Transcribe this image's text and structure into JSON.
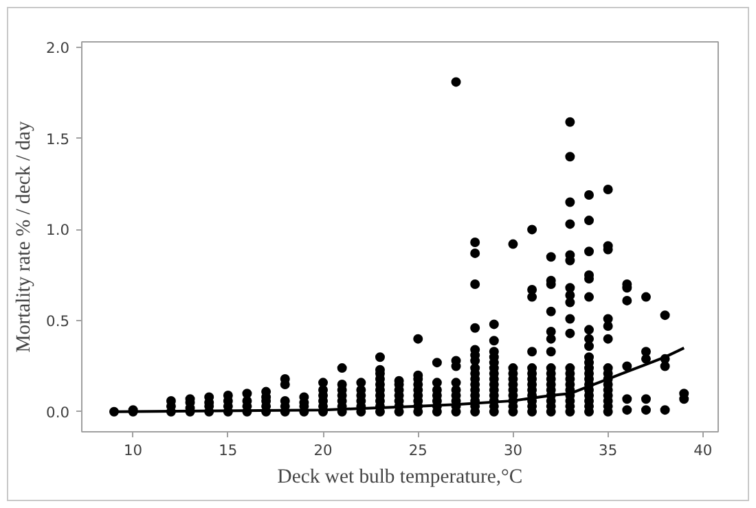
{
  "chart_data": {
    "type": "scatter",
    "xlabel": "Deck wet bulb temperature,°C",
    "ylabel": "Mortality rate % / deck / day",
    "xlim": [
      7.3,
      40.8
    ],
    "ylim": [
      -0.11,
      2.03
    ],
    "xticks": [
      10,
      15,
      20,
      25,
      30,
      35,
      40
    ],
    "yticks": [
      {
        "value": 0,
        "label": "0.0"
      },
      {
        "value": 0.5,
        "label": "0.5"
      },
      {
        "value": 1,
        "label": "1.0"
      },
      {
        "value": 1.5,
        "label": "1.5"
      },
      {
        "value": 2,
        "label": "2.0"
      }
    ],
    "grid": false,
    "marker": "circle",
    "series": [
      {
        "color": "#000000",
        "x": [
          9,
          10,
          10,
          12,
          12,
          12,
          13,
          13,
          13,
          13,
          14,
          14,
          14,
          14,
          15,
          15,
          15,
          15,
          16,
          16,
          16,
          16,
          17,
          17,
          17,
          17,
          17,
          18,
          18,
          18,
          18,
          18,
          19,
          19,
          19,
          19,
          20,
          20,
          20,
          20,
          20,
          20,
          21,
          21,
          21,
          21,
          21,
          21,
          21,
          22,
          22,
          22,
          22,
          22,
          22,
          23,
          23,
          23,
          23,
          23,
          23,
          23,
          23,
          23,
          23,
          24,
          24,
          24,
          24,
          24,
          24,
          24,
          25,
          25,
          25,
          25,
          25,
          25,
          25,
          25,
          25,
          26,
          26,
          26,
          26,
          26,
          26,
          26,
          27,
          27,
          27,
          27,
          27,
          27,
          27,
          27,
          27,
          28,
          28,
          28,
          28,
          28,
          28,
          28,
          28,
          28,
          28,
          28,
          28,
          28,
          28,
          28,
          28,
          29,
          29,
          29,
          29,
          29,
          29,
          29,
          29,
          29,
          29,
          29,
          29,
          29,
          29,
          30,
          30,
          30,
          30,
          30,
          30,
          30,
          30,
          30,
          30,
          31,
          31,
          31,
          31,
          31,
          31,
          31,
          31,
          31,
          31,
          31,
          31,
          31,
          32,
          32,
          32,
          32,
          32,
          32,
          32,
          32,
          32,
          32,
          32,
          32,
          32,
          32,
          32,
          32,
          33,
          33,
          33,
          33,
          33,
          33,
          33,
          33,
          33,
          33,
          33,
          33,
          33,
          33,
          33,
          33,
          33,
          33,
          33,
          33,
          34,
          34,
          34,
          34,
          34,
          34,
          34,
          34,
          34,
          34,
          34,
          34,
          34,
          34,
          34,
          34,
          34,
          34,
          34,
          34,
          35,
          35,
          35,
          35,
          35,
          35,
          35,
          35,
          35,
          35,
          35,
          35,
          35,
          35,
          35,
          36,
          36,
          36,
          36,
          36,
          36,
          37,
          37,
          37,
          37,
          37,
          38,
          38,
          38,
          38,
          39,
          39
        ],
        "values": [
          0,
          0,
          0.01,
          0,
          0.03,
          0.06,
          0,
          0.02,
          0.05,
          0.07,
          0,
          0.03,
          0.05,
          0.08,
          0,
          0.03,
          0.06,
          0.09,
          0,
          0.03,
          0.06,
          0.1,
          0,
          0.03,
          0.06,
          0.08,
          0.11,
          0,
          0.03,
          0.06,
          0.15,
          0.18,
          0,
          0.03,
          0.05,
          0.08,
          0,
          0.03,
          0.06,
          0.09,
          0.12,
          0.16,
          0,
          0.03,
          0.06,
          0.09,
          0.12,
          0.15,
          0.24,
          0,
          0.03,
          0.06,
          0.09,
          0.12,
          0.16,
          0,
          0.03,
          0.06,
          0.09,
          0.12,
          0.15,
          0.18,
          0.21,
          0.23,
          0.3,
          0,
          0.03,
          0.06,
          0.09,
          0.12,
          0.15,
          0.17,
          0,
          0.03,
          0.06,
          0.09,
          0.12,
          0.15,
          0.18,
          0.2,
          0.4,
          0,
          0.03,
          0.06,
          0.09,
          0.12,
          0.16,
          0.27,
          0,
          0.03,
          0.06,
          0.09,
          0.12,
          0.16,
          0.25,
          0.28,
          1.81,
          0,
          0.03,
          0.06,
          0.09,
          0.12,
          0.15,
          0.18,
          0.21,
          0.24,
          0.28,
          0.31,
          0.34,
          0.46,
          0.7,
          0.87,
          0.93,
          0,
          0.03,
          0.06,
          0.09,
          0.12,
          0.15,
          0.18,
          0.21,
          0.24,
          0.27,
          0.3,
          0.33,
          0.39,
          0.48,
          0,
          0.03,
          0.06,
          0.09,
          0.12,
          0.15,
          0.18,
          0.21,
          0.24,
          0.92,
          0,
          0.03,
          0.06,
          0.09,
          0.12,
          0.15,
          0.18,
          0.21,
          0.24,
          0.33,
          0.63,
          0.67,
          1.0,
          0,
          0.03,
          0.06,
          0.09,
          0.12,
          0.15,
          0.18,
          0.21,
          0.24,
          0.33,
          0.4,
          0.44,
          0.55,
          0.7,
          0.72,
          0.85,
          0,
          0.03,
          0.06,
          0.09,
          0.12,
          0.15,
          0.18,
          0.21,
          0.24,
          0.43,
          0.51,
          0.6,
          0.64,
          0.68,
          0.83,
          0.86,
          1.03,
          1.15,
          1.4,
          1.59,
          0,
          0.03,
          0.06,
          0.09,
          0.12,
          0.15,
          0.18,
          0.21,
          0.24,
          0.27,
          0.3,
          0.36,
          0.4,
          0.45,
          0.63,
          0.73,
          0.75,
          0.88,
          1.05,
          1.19,
          0,
          0.03,
          0.06,
          0.09,
          0.12,
          0.15,
          0.18,
          0.21,
          0.24,
          0.4,
          0.47,
          0.51,
          0.89,
          0.91,
          1.22,
          0.01,
          0.07,
          0.25,
          0.61,
          0.68,
          0.7,
          0.01,
          0.07,
          0.29,
          0.33,
          0.63,
          0.01,
          0.25,
          0.29,
          0.53,
          0.07,
          0.1
        ]
      },
      {
        "type": "line",
        "color": "#000000",
        "marker": "none",
        "x": [
          9,
          20,
          25,
          27,
          30,
          32,
          33,
          34,
          35,
          36,
          37,
          38,
          39
        ],
        "values": [
          0,
          0.01,
          0.03,
          0.04,
          0.06,
          0.09,
          0.1,
          0.14,
          0.18,
          0.22,
          0.26,
          0.3,
          0.35
        ]
      }
    ]
  }
}
